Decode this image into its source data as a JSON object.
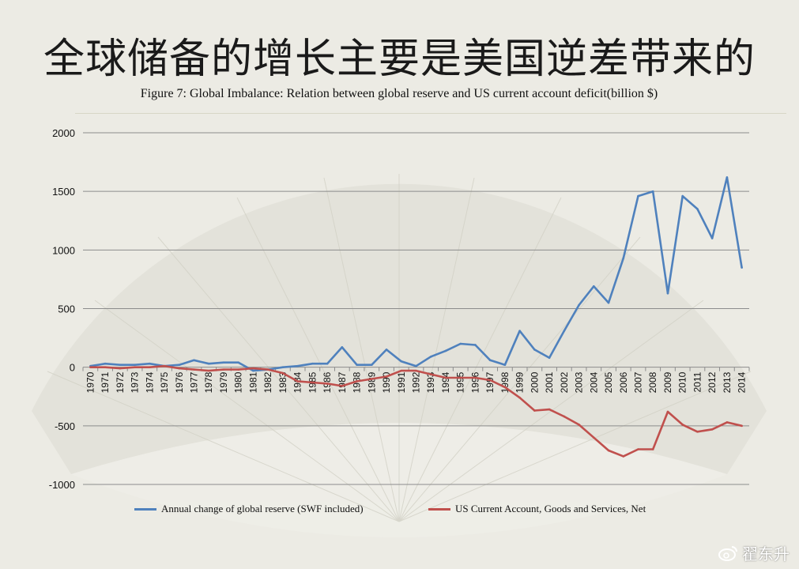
{
  "slide": {
    "title": "全球储备的增长主要是美国逆差带来的",
    "watermark_text": "翟东升",
    "watermark_icon": "weibo-icon"
  },
  "chart_data": {
    "type": "line",
    "title": "Figure 7: Global Imbalance: Relation between global reserve and US current account deficit(billion $)",
    "xlabel": "",
    "ylabel": "",
    "ylim": [
      -1000,
      2000
    ],
    "yticks": [
      -1000,
      -500,
      0,
      500,
      1000,
      1500,
      2000
    ],
    "grid": true,
    "legend_position": "bottom",
    "categories": [
      "1970",
      "1971",
      "1972",
      "1973",
      "1974",
      "1975",
      "1976",
      "1977",
      "1978",
      "1979",
      "1980",
      "1981",
      "1982",
      "1983",
      "1984",
      "1985",
      "1986",
      "1987",
      "1988",
      "1989",
      "1990",
      "1991",
      "1992",
      "1993",
      "1994",
      "1995",
      "1996",
      "1997",
      "1998",
      "1999",
      "2000",
      "2001",
      "2002",
      "2003",
      "2004",
      "2005",
      "2006",
      "2007",
      "2008",
      "2009",
      "2010",
      "2011",
      "2012",
      "2013",
      "2014"
    ],
    "series": [
      {
        "name": "Annual change of global reserve (SWF included)",
        "color": "#4f81bd",
        "values": [
          10,
          30,
          20,
          20,
          30,
          10,
          20,
          60,
          30,
          40,
          40,
          -30,
          -20,
          0,
          10,
          30,
          30,
          170,
          20,
          20,
          150,
          50,
          10,
          90,
          140,
          200,
          190,
          60,
          20,
          310,
          150,
          80,
          310,
          530,
          690,
          550,
          930,
          1460,
          1500,
          630,
          1460,
          1350,
          1100,
          1620,
          850
        ]
      },
      {
        "name": "US Current Account, Goods and Services, Net",
        "color": "#c0504d",
        "values": [
          0,
          0,
          -10,
          0,
          0,
          10,
          -10,
          -20,
          -30,
          -20,
          -20,
          -10,
          -20,
          -50,
          -120,
          -130,
          -140,
          -160,
          -120,
          -100,
          -80,
          -30,
          -30,
          -60,
          -90,
          -90,
          -90,
          -110,
          -170,
          -260,
          -370,
          -360,
          -420,
          -490,
          -600,
          -710,
          -760,
          -700,
          -700,
          -380,
          -490,
          -550,
          -530,
          -470,
          -500
        ]
      }
    ]
  }
}
